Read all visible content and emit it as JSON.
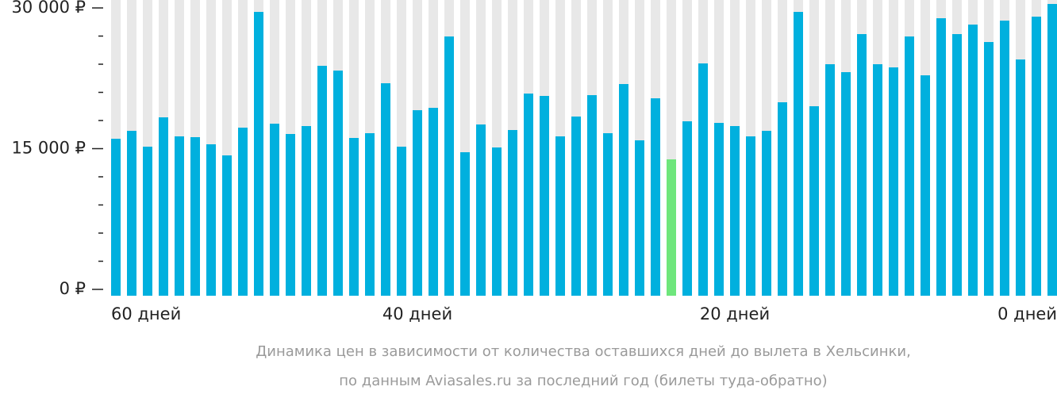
{
  "chart_data": {
    "type": "bar",
    "caption": [
      "Динамика цен в зависимости от количества оставшихся дней до вылета в Хельсинки,",
      "по данным Aviasales.ru за последний год (билеты туда-обратно)"
    ],
    "categories": [
      "60 дней",
      null,
      null,
      null,
      null,
      null,
      null,
      null,
      null,
      null,
      null,
      null,
      null,
      null,
      null,
      null,
      null,
      null,
      null,
      "40 дней",
      null,
      null,
      null,
      null,
      null,
      null,
      null,
      null,
      null,
      null,
      null,
      null,
      null,
      null,
      null,
      null,
      null,
      null,
      null,
      "20 дней",
      null,
      null,
      null,
      null,
      null,
      null,
      null,
      null,
      null,
      null,
      null,
      null,
      null,
      null,
      null,
      null,
      null,
      null,
      null,
      "0 дней"
    ],
    "values": [
      16056,
      16900,
      15211,
      18338,
      16310,
      16225,
      15465,
      14282,
      17239,
      29577,
      17662,
      16563,
      17408,
      23831,
      23324,
      16141,
      16648,
      21972,
      15211,
      19099,
      19352,
      26958,
      14620,
      17577,
      15127,
      16986,
      20873,
      20620,
      16310,
      18423,
      20704,
      16648,
      21887,
      15887,
      20366,
      13859,
      17915,
      24085,
      17746,
      17408,
      16310,
      16900,
      19944,
      29577,
      19521,
      24000,
      23155,
      27211,
      24000,
      23662,
      26958,
      22817,
      28901,
      27211,
      28225,
      26366,
      28648,
      24507,
      29070,
      30423
    ],
    "color": "#00b0de",
    "min_color": "#6ee67c",
    "background_color": "#e8e8e8",
    "ylim": [
      0,
      30000
    ],
    "yticks": [
      {
        "value": 0,
        "label": "0 ₽"
      },
      {
        "value": 15000,
        "label": "15 000 ₽"
      },
      {
        "value": 30000,
        "label": "30 000 ₽"
      }
    ],
    "yminorticks": [
      3000,
      6000,
      9000,
      12000,
      18000,
      21000,
      24000,
      27000
    ]
  }
}
